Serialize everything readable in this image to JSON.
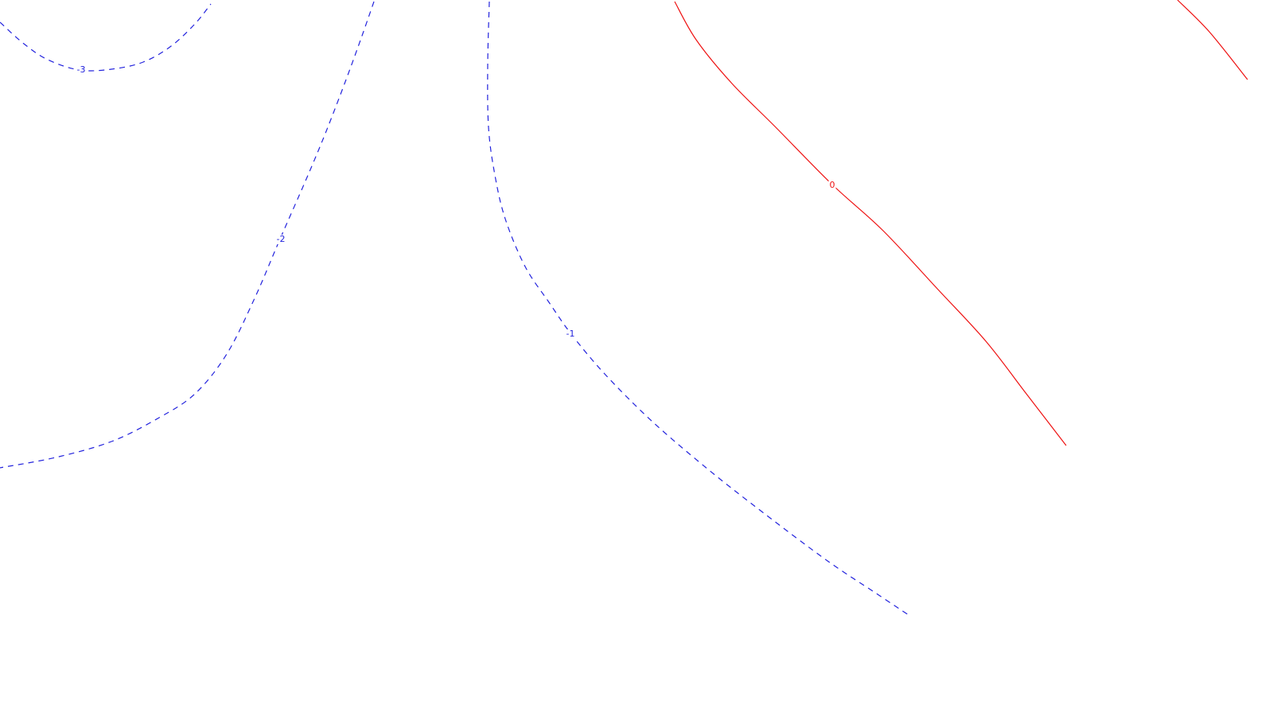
{
  "chart_data": {
    "type": "contour",
    "title": "",
    "xlabel": "",
    "ylabel": "",
    "grid": false,
    "legend": "none",
    "colors": {
      "negative": "#2222dd",
      "zero": "#ee1111"
    },
    "levels": [
      {
        "value": -3,
        "label": "-3",
        "style": "dashed",
        "color_key": "negative",
        "points": [
          [
            0,
            28
          ],
          [
            30,
            55
          ],
          [
            60,
            75
          ],
          [
            100,
            88
          ],
          [
            140,
            87
          ],
          [
            180,
            78
          ],
          [
            215,
            58
          ],
          [
            245,
            30
          ],
          [
            265,
            5
          ]
        ]
      },
      {
        "value": -2,
        "label": "-2",
        "style": "dashed",
        "color_key": "negative",
        "points": [
          [
            470,
            2
          ],
          [
            455,
            45
          ],
          [
            435,
            100
          ],
          [
            410,
            165
          ],
          [
            385,
            225
          ],
          [
            350,
            305
          ],
          [
            320,
            375
          ],
          [
            285,
            445
          ],
          [
            245,
            495
          ],
          [
            200,
            525
          ],
          [
            140,
            555
          ],
          [
            70,
            575
          ],
          [
            0,
            588
          ]
        ]
      },
      {
        "value": -1,
        "label": "-1",
        "style": "dashed",
        "color_key": "negative",
        "points": [
          [
            615,
            2
          ],
          [
            613,
            80
          ],
          [
            614,
            160
          ],
          [
            622,
            220
          ],
          [
            635,
            275
          ],
          [
            660,
            335
          ],
          [
            690,
            380
          ],
          [
            718,
            420
          ],
          [
            760,
            470
          ],
          [
            820,
            530
          ],
          [
            890,
            590
          ],
          [
            960,
            645
          ],
          [
            1040,
            705
          ],
          [
            1100,
            745
          ],
          [
            1145,
            775
          ]
        ]
      },
      {
        "value": 0,
        "label": "0",
        "style": "solid",
        "color_key": "zero",
        "points": [
          [
            848,
            2
          ],
          [
            875,
            50
          ],
          [
            920,
            105
          ],
          [
            975,
            160
          ],
          [
            1046,
            232
          ],
          [
            1110,
            290
          ],
          [
            1180,
            365
          ],
          [
            1240,
            430
          ],
          [
            1290,
            495
          ],
          [
            1340,
            560
          ]
        ]
      },
      {
        "value": 0,
        "label": "",
        "style": "solid",
        "color_key": "zero",
        "points": [
          [
            1480,
            0
          ],
          [
            1520,
            40
          ],
          [
            1568,
            100
          ]
        ]
      }
    ],
    "label_positions": [
      {
        "text": "-3",
        "at": [
          102,
          88
        ]
      },
      {
        "text": "-2",
        "at": [
          353,
          301
        ]
      },
      {
        "text": "-1",
        "at": [
          717,
          420
        ]
      },
      {
        "text": "0",
        "at": [
          1046,
          233
        ]
      }
    ]
  }
}
